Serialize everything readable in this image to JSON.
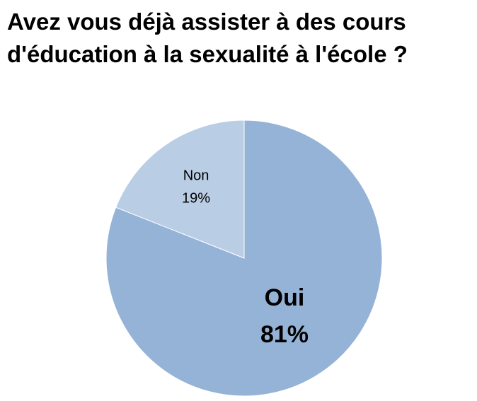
{
  "chart_data": {
    "type": "pie",
    "title": "Avez vous déjà assister à des cours d'éducation à la sexualité à l'école ?",
    "categories": [
      "Oui",
      "Non"
    ],
    "values": [
      81,
      19
    ],
    "value_labels": [
      "81%",
      "19%"
    ],
    "colors": [
      "#95b3d7",
      "#b9cde5"
    ]
  }
}
